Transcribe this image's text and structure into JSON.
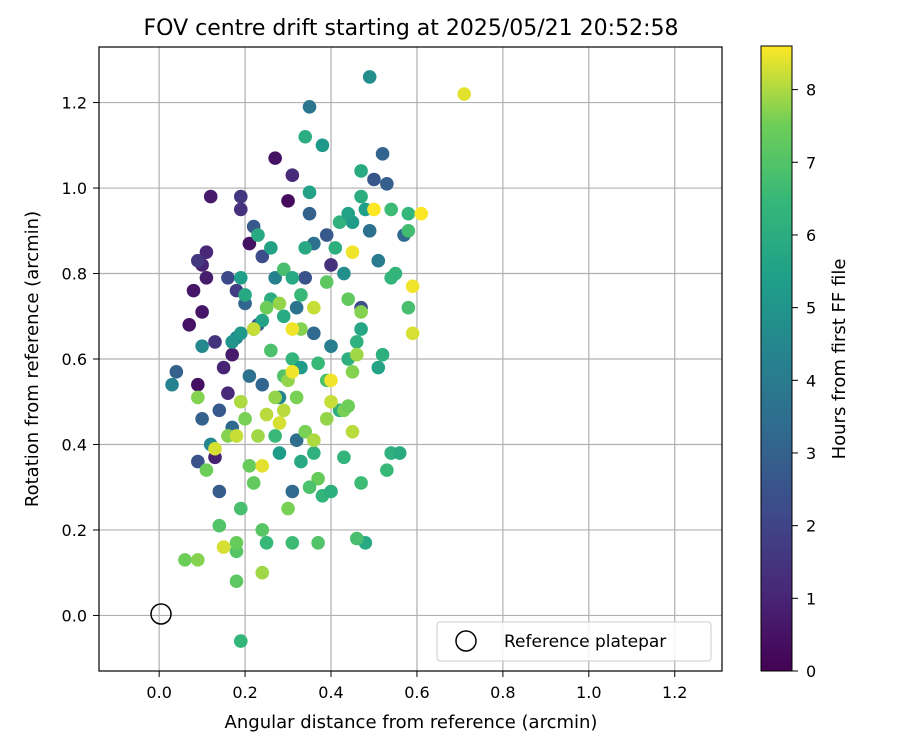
{
  "chart_data": {
    "type": "scatter",
    "title": "FOV centre drift starting at 2025/05/21 20:52:58",
    "xlabel": "Angular distance from reference (arcmin)",
    "ylabel": "Rotation from reference (arcmin)",
    "xlim": [
      -0.14,
      1.31
    ],
    "ylim": [
      -0.13,
      1.33
    ],
    "xticks": [
      "0.0",
      "0.2",
      "0.4",
      "0.6",
      "0.8",
      "1.0",
      "1.2"
    ],
    "yticks": [
      "0.0",
      "0.2",
      "0.4",
      "0.6",
      "0.8",
      "1.0",
      "1.2"
    ],
    "grid": true,
    "legend": {
      "position": "lower-right",
      "entries": [
        "Reference platepar"
      ]
    },
    "reference_point": {
      "x": 0.0,
      "y": 0.0,
      "label": "Reference platepar"
    },
    "colorbar": {
      "label": "Hours from first FF file",
      "range": [
        0,
        8.6
      ],
      "ticks": [
        "0",
        "1",
        "2",
        "3",
        "4",
        "5",
        "6",
        "7",
        "8"
      ],
      "colormap": "viridis"
    },
    "points": [
      {
        "x": 0.07,
        "y": 0.68,
        "h": 0.5
      },
      {
        "x": 0.08,
        "y": 0.76,
        "h": 0.6
      },
      {
        "x": 0.1,
        "y": 0.82,
        "h": 1.0
      },
      {
        "x": 0.11,
        "y": 0.85,
        "h": 1.1
      },
      {
        "x": 0.12,
        "y": 0.98,
        "h": 0.7
      },
      {
        "x": 0.1,
        "y": 0.71,
        "h": 0.6
      },
      {
        "x": 0.11,
        "y": 0.79,
        "h": 0.8
      },
      {
        "x": 0.09,
        "y": 0.54,
        "h": 0.4
      },
      {
        "x": 0.09,
        "y": 0.83,
        "h": 1.6
      },
      {
        "x": 0.13,
        "y": 0.64,
        "h": 1.5
      },
      {
        "x": 0.27,
        "y": 1.07,
        "h": 0.5
      },
      {
        "x": 0.31,
        "y": 1.03,
        "h": 1.2
      },
      {
        "x": 0.3,
        "y": 0.97,
        "h": 0.3
      },
      {
        "x": 0.19,
        "y": 0.98,
        "h": 1.6
      },
      {
        "x": 0.19,
        "y": 0.95,
        "h": 1.4
      },
      {
        "x": 0.21,
        "y": 0.87,
        "h": 0.5
      },
      {
        "x": 0.15,
        "y": 0.58,
        "h": 1.0
      },
      {
        "x": 0.13,
        "y": 0.37,
        "h": 0.9
      },
      {
        "x": 0.16,
        "y": 0.52,
        "h": 1.2
      },
      {
        "x": 0.17,
        "y": 0.61,
        "h": 0.7
      },
      {
        "x": 0.04,
        "y": 0.57,
        "h": 3.0
      },
      {
        "x": 0.03,
        "y": 0.54,
        "h": 4.3
      },
      {
        "x": 0.09,
        "y": 0.36,
        "h": 2.5
      },
      {
        "x": 0.1,
        "y": 0.46,
        "h": 3.0
      },
      {
        "x": 0.12,
        "y": 0.4,
        "h": 4.5
      },
      {
        "x": 0.14,
        "y": 0.29,
        "h": 2.8
      },
      {
        "x": 0.16,
        "y": 0.79,
        "h": 2.2
      },
      {
        "x": 0.18,
        "y": 0.76,
        "h": 1.8
      },
      {
        "x": 0.22,
        "y": 0.91,
        "h": 2.7
      },
      {
        "x": 0.24,
        "y": 0.84,
        "h": 2.3
      },
      {
        "x": 0.2,
        "y": 0.73,
        "h": 3.2
      },
      {
        "x": 0.23,
        "y": 0.68,
        "h": 2.8
      },
      {
        "x": 0.18,
        "y": 0.65,
        "h": 4.4
      },
      {
        "x": 0.21,
        "y": 0.56,
        "h": 3.6
      },
      {
        "x": 0.24,
        "y": 0.54,
        "h": 3.2
      },
      {
        "x": 0.17,
        "y": 0.44,
        "h": 3.3
      },
      {
        "x": 0.14,
        "y": 0.48,
        "h": 2.7
      },
      {
        "x": 0.1,
        "y": 0.63,
        "h": 4.6
      },
      {
        "x": 0.35,
        "y": 1.19,
        "h": 3.8
      },
      {
        "x": 0.38,
        "y": 1.1,
        "h": 5.2
      },
      {
        "x": 0.49,
        "y": 1.26,
        "h": 4.8
      },
      {
        "x": 0.52,
        "y": 1.08,
        "h": 3.1
      },
      {
        "x": 0.5,
        "y": 1.02,
        "h": 2.6
      },
      {
        "x": 0.53,
        "y": 1.01,
        "h": 2.9
      },
      {
        "x": 0.47,
        "y": 1.04,
        "h": 5.9
      },
      {
        "x": 0.35,
        "y": 0.94,
        "h": 3.0
      },
      {
        "x": 0.4,
        "y": 0.82,
        "h": 1.4
      },
      {
        "x": 0.39,
        "y": 0.89,
        "h": 2.7
      },
      {
        "x": 0.36,
        "y": 0.87,
        "h": 3.6
      },
      {
        "x": 0.34,
        "y": 0.79,
        "h": 2.5
      },
      {
        "x": 0.32,
        "y": 0.72,
        "h": 3.7
      },
      {
        "x": 0.36,
        "y": 0.66,
        "h": 3.3
      },
      {
        "x": 0.4,
        "y": 0.63,
        "h": 4.1
      },
      {
        "x": 0.28,
        "y": 0.51,
        "h": 4.4
      },
      {
        "x": 0.32,
        "y": 0.41,
        "h": 3.5
      },
      {
        "x": 0.31,
        "y": 0.29,
        "h": 3.3
      },
      {
        "x": 0.47,
        "y": 0.72,
        "h": 2.3
      },
      {
        "x": 0.49,
        "y": 0.9,
        "h": 3.6
      },
      {
        "x": 0.51,
        "y": 0.83,
        "h": 4.0
      },
      {
        "x": 0.57,
        "y": 0.89,
        "h": 3.3
      },
      {
        "x": 0.43,
        "y": 0.8,
        "h": 4.8
      },
      {
        "x": 0.45,
        "y": 0.92,
        "h": 5.3
      },
      {
        "x": 0.42,
        "y": 0.92,
        "h": 6.2
      },
      {
        "x": 0.44,
        "y": 0.94,
        "h": 5.5
      },
      {
        "x": 0.48,
        "y": 0.95,
        "h": 5.4
      },
      {
        "x": 0.41,
        "y": 0.86,
        "h": 6.1
      },
      {
        "x": 0.35,
        "y": 0.99,
        "h": 5.5
      },
      {
        "x": 0.34,
        "y": 1.12,
        "h": 6.0
      },
      {
        "x": 0.47,
        "y": 0.98,
        "h": 6.0
      },
      {
        "x": 0.54,
        "y": 0.95,
        "h": 6.6
      },
      {
        "x": 0.58,
        "y": 0.94,
        "h": 6.4
      },
      {
        "x": 0.58,
        "y": 0.9,
        "h": 6.7
      },
      {
        "x": 0.58,
        "y": 0.72,
        "h": 6.8
      },
      {
        "x": 0.54,
        "y": 0.79,
        "h": 6.3
      },
      {
        "x": 0.55,
        "y": 0.8,
        "h": 6.3
      },
      {
        "x": 0.52,
        "y": 0.61,
        "h": 6.1
      },
      {
        "x": 0.51,
        "y": 0.58,
        "h": 5.6
      },
      {
        "x": 0.47,
        "y": 0.67,
        "h": 5.7
      },
      {
        "x": 0.46,
        "y": 0.64,
        "h": 6.2
      },
      {
        "x": 0.44,
        "y": 0.6,
        "h": 6.1
      },
      {
        "x": 0.19,
        "y": 0.79,
        "h": 5.4
      },
      {
        "x": 0.2,
        "y": 0.75,
        "h": 5.8
      },
      {
        "x": 0.23,
        "y": 0.89,
        "h": 5.8
      },
      {
        "x": 0.26,
        "y": 0.86,
        "h": 5.5
      },
      {
        "x": 0.26,
        "y": 0.74,
        "h": 6.0
      },
      {
        "x": 0.27,
        "y": 0.79,
        "h": 4.2
      },
      {
        "x": 0.29,
        "y": 0.81,
        "h": 6.8
      },
      {
        "x": 0.31,
        "y": 0.79,
        "h": 5.8
      },
      {
        "x": 0.33,
        "y": 0.75,
        "h": 6.5
      },
      {
        "x": 0.34,
        "y": 0.86,
        "h": 5.8
      },
      {
        "x": 0.17,
        "y": 0.64,
        "h": 5.0
      },
      {
        "x": 0.19,
        "y": 0.66,
        "h": 5.2
      },
      {
        "x": 0.22,
        "y": 0.67,
        "h": 4.9
      },
      {
        "x": 0.24,
        "y": 0.69,
        "h": 5.6
      },
      {
        "x": 0.29,
        "y": 0.7,
        "h": 5.9
      },
      {
        "x": 0.31,
        "y": 0.6,
        "h": 6.3
      },
      {
        "x": 0.33,
        "y": 0.58,
        "h": 5.3
      },
      {
        "x": 0.37,
        "y": 0.59,
        "h": 6.5
      },
      {
        "x": 0.39,
        "y": 0.55,
        "h": 6.9
      },
      {
        "x": 0.42,
        "y": 0.48,
        "h": 6.0
      },
      {
        "x": 0.26,
        "y": 0.62,
        "h": 6.9
      },
      {
        "x": 0.29,
        "y": 0.56,
        "h": 7.0
      },
      {
        "x": 0.27,
        "y": 0.42,
        "h": 6.5
      },
      {
        "x": 0.28,
        "y": 0.38,
        "h": 5.3
      },
      {
        "x": 0.33,
        "y": 0.36,
        "h": 5.8
      },
      {
        "x": 0.36,
        "y": 0.38,
        "h": 6.2
      },
      {
        "x": 0.38,
        "y": 0.28,
        "h": 6.3
      },
      {
        "x": 0.4,
        "y": 0.29,
        "h": 6.1
      },
      {
        "x": 0.43,
        "y": 0.37,
        "h": 6.3
      },
      {
        "x": 0.47,
        "y": 0.31,
        "h": 6.6
      },
      {
        "x": 0.53,
        "y": 0.34,
        "h": 6.5
      },
      {
        "x": 0.54,
        "y": 0.38,
        "h": 6.2
      },
      {
        "x": 0.56,
        "y": 0.38,
        "h": 5.9
      },
      {
        "x": 0.48,
        "y": 0.17,
        "h": 5.8
      },
      {
        "x": 0.46,
        "y": 0.18,
        "h": 6.8
      },
      {
        "x": 0.37,
        "y": 0.17,
        "h": 7.0
      },
      {
        "x": 0.31,
        "y": 0.17,
        "h": 6.6
      },
      {
        "x": 0.25,
        "y": 0.17,
        "h": 6.5
      },
      {
        "x": 0.18,
        "y": 0.15,
        "h": 7.1
      },
      {
        "x": 0.18,
        "y": 0.08,
        "h": 7.2
      },
      {
        "x": 0.19,
        "y": -0.06,
        "h": 6.4
      },
      {
        "x": 0.06,
        "y": 0.13,
        "h": 7.5
      },
      {
        "x": 0.09,
        "y": 0.13,
        "h": 7.7
      },
      {
        "x": 0.15,
        "y": 0.16,
        "h": 8.3
      },
      {
        "x": 0.24,
        "y": 0.1,
        "h": 7.9
      },
      {
        "x": 0.14,
        "y": 0.21,
        "h": 7.0
      },
      {
        "x": 0.19,
        "y": 0.25,
        "h": 6.8
      },
      {
        "x": 0.24,
        "y": 0.2,
        "h": 7.1
      },
      {
        "x": 0.18,
        "y": 0.17,
        "h": 7.4
      },
      {
        "x": 0.09,
        "y": 0.51,
        "h": 7.7
      },
      {
        "x": 0.11,
        "y": 0.34,
        "h": 7.5
      },
      {
        "x": 0.13,
        "y": 0.39,
        "h": 8.3
      },
      {
        "x": 0.16,
        "y": 0.42,
        "h": 7.7
      },
      {
        "x": 0.18,
        "y": 0.42,
        "h": 8.2
      },
      {
        "x": 0.19,
        "y": 0.5,
        "h": 8.0
      },
      {
        "x": 0.2,
        "y": 0.46,
        "h": 7.6
      },
      {
        "x": 0.21,
        "y": 0.35,
        "h": 7.4
      },
      {
        "x": 0.22,
        "y": 0.31,
        "h": 7.3
      },
      {
        "x": 0.24,
        "y": 0.35,
        "h": 8.4
      },
      {
        "x": 0.23,
        "y": 0.42,
        "h": 7.9
      },
      {
        "x": 0.25,
        "y": 0.47,
        "h": 8.1
      },
      {
        "x": 0.27,
        "y": 0.51,
        "h": 7.8
      },
      {
        "x": 0.28,
        "y": 0.45,
        "h": 8.3
      },
      {
        "x": 0.29,
        "y": 0.48,
        "h": 8.1
      },
      {
        "x": 0.3,
        "y": 0.55,
        "h": 7.8
      },
      {
        "x": 0.31,
        "y": 0.57,
        "h": 8.5
      },
      {
        "x": 0.32,
        "y": 0.51,
        "h": 7.6
      },
      {
        "x": 0.34,
        "y": 0.43,
        "h": 7.6
      },
      {
        "x": 0.36,
        "y": 0.41,
        "h": 8.0
      },
      {
        "x": 0.37,
        "y": 0.32,
        "h": 7.4
      },
      {
        "x": 0.39,
        "y": 0.46,
        "h": 7.8
      },
      {
        "x": 0.4,
        "y": 0.5,
        "h": 8.2
      },
      {
        "x": 0.4,
        "y": 0.55,
        "h": 8.5
      },
      {
        "x": 0.43,
        "y": 0.48,
        "h": 7.6
      },
      {
        "x": 0.44,
        "y": 0.49,
        "h": 7.5
      },
      {
        "x": 0.45,
        "y": 0.43,
        "h": 8.1
      },
      {
        "x": 0.45,
        "y": 0.57,
        "h": 7.7
      },
      {
        "x": 0.46,
        "y": 0.61,
        "h": 7.9
      },
      {
        "x": 0.47,
        "y": 0.71,
        "h": 7.7
      },
      {
        "x": 0.44,
        "y": 0.74,
        "h": 7.3
      },
      {
        "x": 0.45,
        "y": 0.85,
        "h": 8.5
      },
      {
        "x": 0.36,
        "y": 0.72,
        "h": 8.2
      },
      {
        "x": 0.39,
        "y": 0.78,
        "h": 7.2
      },
      {
        "x": 0.33,
        "y": 0.67,
        "h": 7.7
      },
      {
        "x": 0.31,
        "y": 0.67,
        "h": 8.5
      },
      {
        "x": 0.28,
        "y": 0.73,
        "h": 7.8
      },
      {
        "x": 0.25,
        "y": 0.72,
        "h": 7.5
      },
      {
        "x": 0.22,
        "y": 0.67,
        "h": 8.2
      },
      {
        "x": 0.5,
        "y": 0.95,
        "h": 8.6
      },
      {
        "x": 0.61,
        "y": 0.94,
        "h": 8.6
      },
      {
        "x": 0.59,
        "y": 0.77,
        "h": 8.5
      },
      {
        "x": 0.59,
        "y": 0.66,
        "h": 8.3
      },
      {
        "x": 0.71,
        "y": 1.22,
        "h": 8.4
      },
      {
        "x": 0.35,
        "y": 0.3,
        "h": 6.9
      },
      {
        "x": 0.3,
        "y": 0.25,
        "h": 7.6
      }
    ]
  }
}
